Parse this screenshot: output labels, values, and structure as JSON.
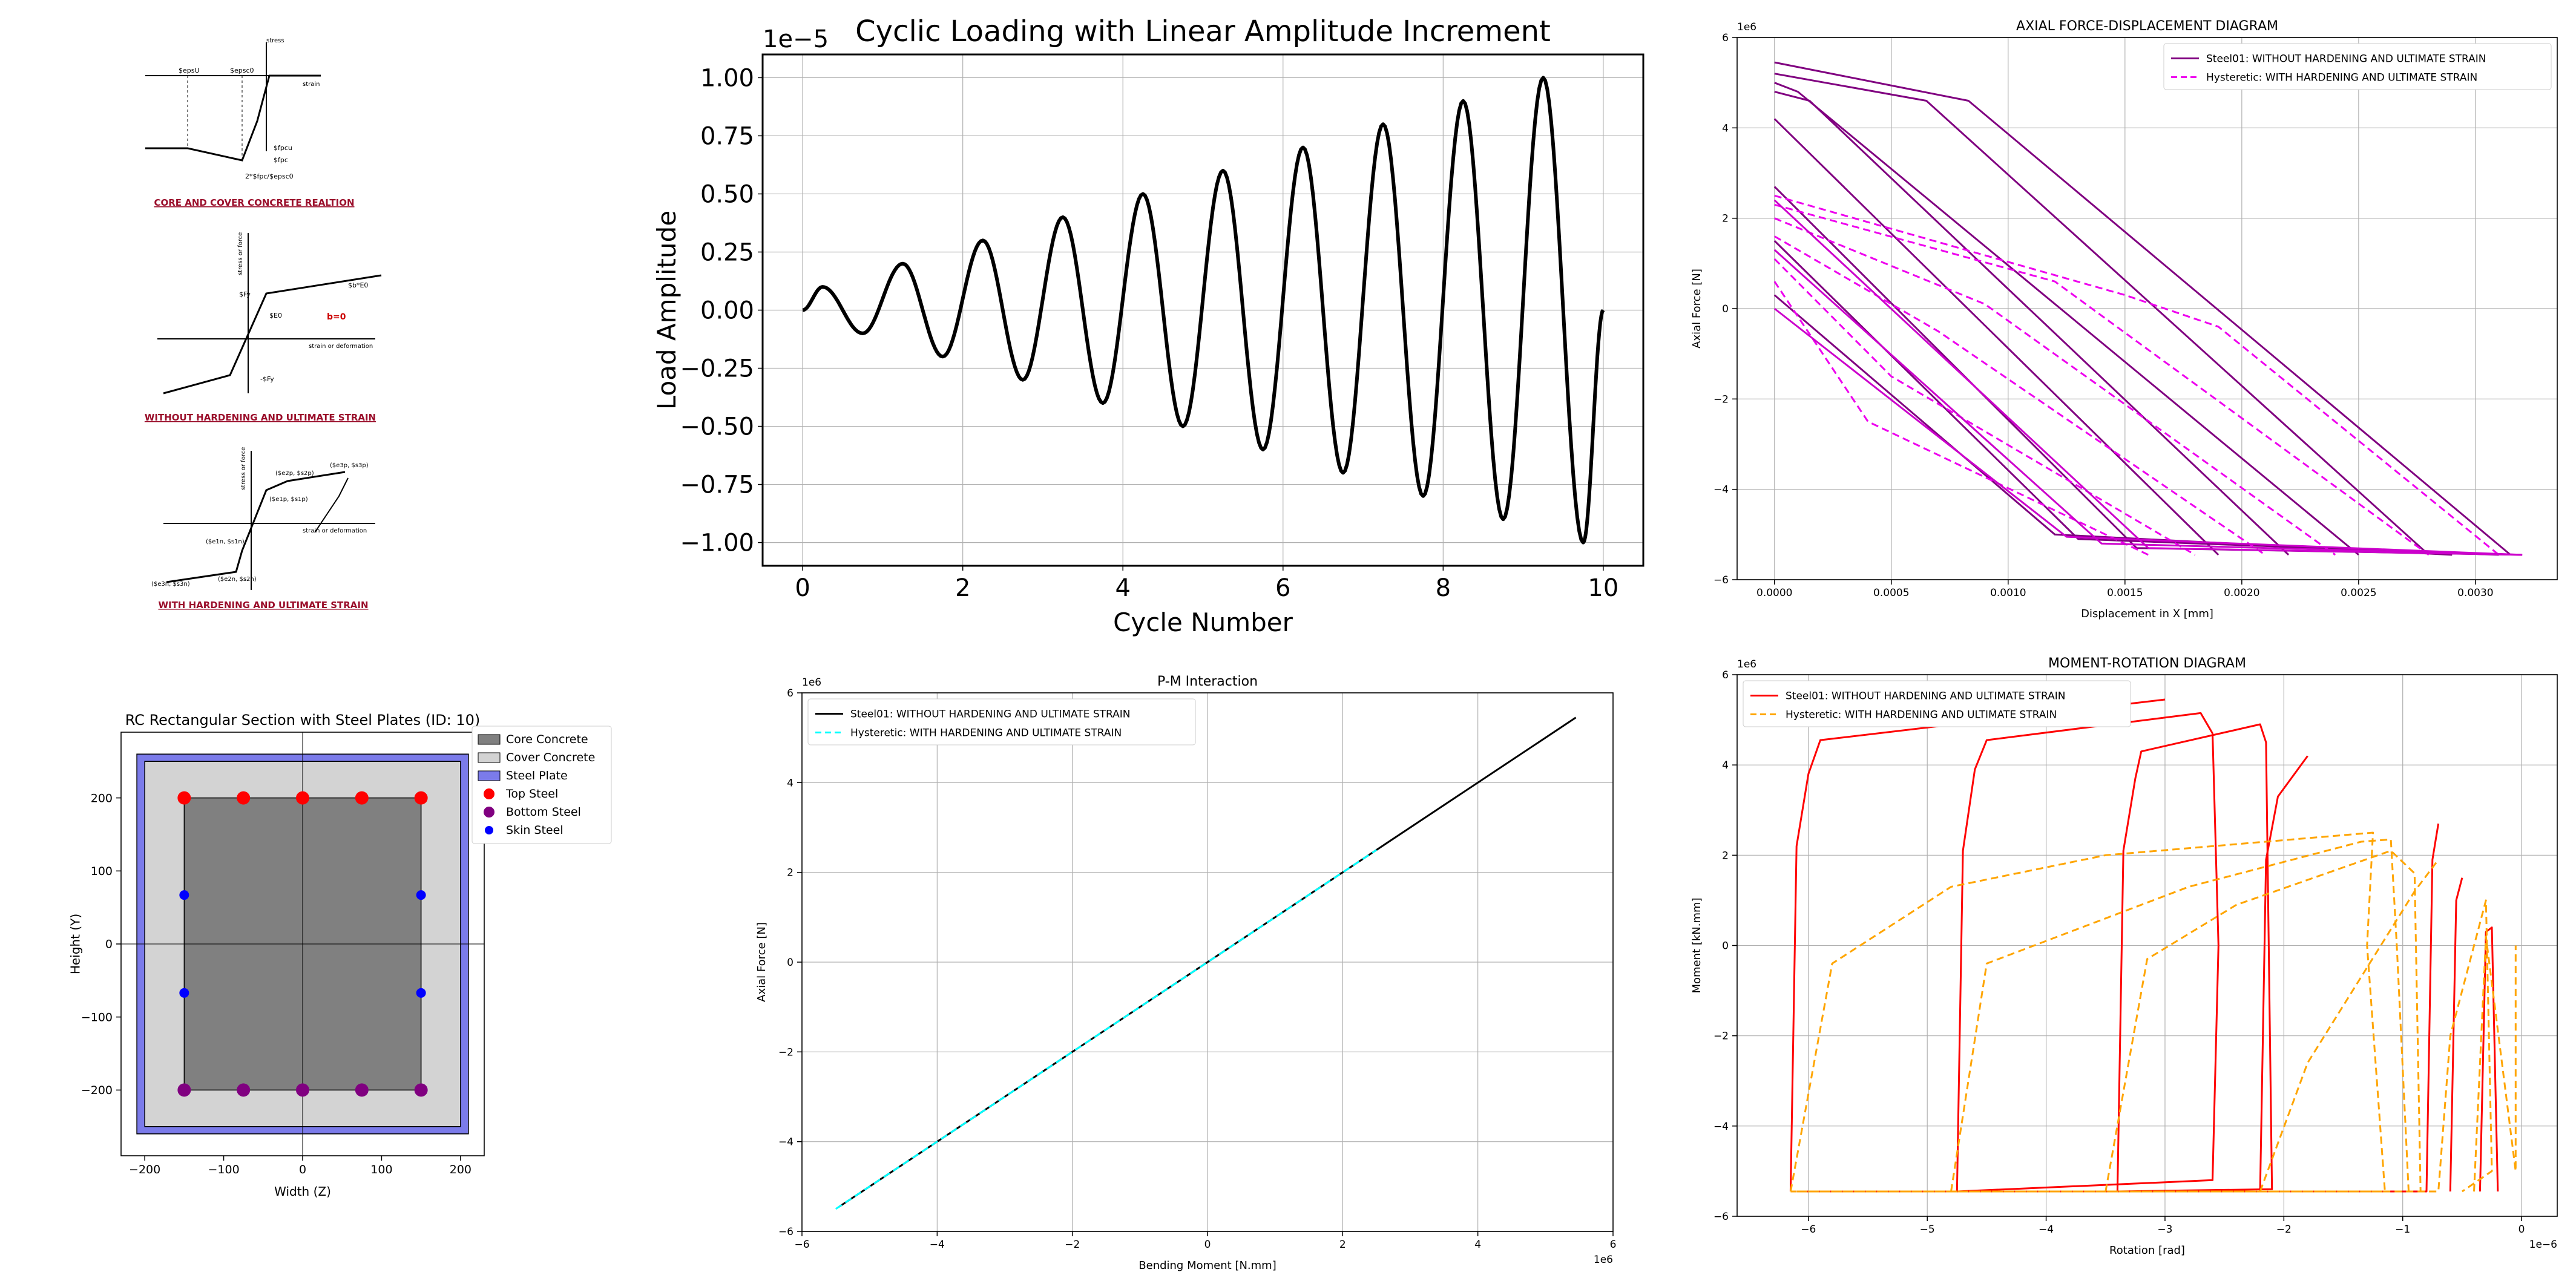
{
  "material_models": {
    "concrete": {
      "caption": "CORE AND COVER CONCRETE REALTION",
      "axis_y": "stress",
      "axis_x": "strain",
      "labels": [
        "$epsU",
        "$epsc0",
        "$fpcu",
        "$fpc",
        "2*$fpc/$epsc0"
      ]
    },
    "steel01": {
      "caption": "WITHOUT HARDENING AND ULTIMATE STRAIN",
      "axis_y": "stress or force",
      "axis_x": "strain or deformation",
      "labels": [
        "$Fy",
        "$b*E0",
        "$E0",
        "-$Fy",
        "b=0"
      ]
    },
    "hysteretic": {
      "caption": "WITH HARDENING AND ULTIMATE STRAIN",
      "axis_y": "stress or force",
      "axis_x": "strain or deformation",
      "labels": [
        "($e1p, $s1p)",
        "($e2p, $s2p)",
        "($e3p, $s3p)",
        "($e1n, $s1n)",
        "($e2n, $s2n)",
        "($e3n, $s3n)"
      ]
    }
  },
  "chart_data": [
    {
      "id": "cyclic",
      "type": "line",
      "title": "Cyclic Loading with Linear Amplitude Increment",
      "xlabel": "Cycle Number",
      "ylabel": "Load Amplitude",
      "y_offset_text": "1e−5",
      "xlim": [
        -0.5,
        10.5
      ],
      "ylim": [
        -1.1,
        1.1
      ],
      "xticks": [
        0,
        2,
        4,
        6,
        8,
        10
      ],
      "xtick_labels": [
        "0",
        "2",
        "4",
        "6",
        "8",
        "10"
      ],
      "yticks": [
        -1.0,
        -0.75,
        -0.5,
        -0.25,
        0.0,
        0.25,
        0.5,
        0.75,
        1.0
      ],
      "ytick_labels": [
        "−1.00",
        "−0.75",
        "−0.50",
        "−0.25",
        "0.00",
        "0.25",
        "0.50",
        "0.75",
        "1.00"
      ],
      "grid": true,
      "series": [
        {
          "color": "#000000",
          "style": "solid",
          "x": [
            0,
            0.25,
            0.75,
            1.25,
            1.75,
            2.25,
            2.75,
            3.25,
            3.75,
            4.25,
            4.75,
            5.25,
            5.75,
            6.25,
            6.75,
            7.25,
            7.75,
            8.25,
            8.75,
            9.25,
            9.75,
            10
          ],
          "y": [
            0,
            0.1,
            -0.1,
            0.2,
            -0.2,
            0.3,
            -0.3,
            0.4,
            -0.4,
            0.5,
            -0.5,
            0.6,
            -0.6,
            0.7,
            -0.7,
            0.8,
            -0.8,
            0.9,
            -0.9,
            1.0,
            -1.0,
            0
          ]
        }
      ]
    },
    {
      "id": "axial",
      "type": "line",
      "title": "AXIAL FORCE-DISPLACEMENT DIAGRAM",
      "xlabel": "Displacement in X [mm]",
      "ylabel": "Axial Force [N]",
      "y_offset_text": "1e6",
      "xlim": [
        -0.00016,
        0.00335
      ],
      "ylim": [
        -6,
        6
      ],
      "xticks": [
        0,
        0.0005,
        0.001,
        0.0015,
        0.002,
        0.0025,
        0.003
      ],
      "xtick_labels": [
        "0.0000",
        "0.0005",
        "0.0010",
        "0.0015",
        "0.0020",
        "0.0025",
        "0.0030"
      ],
      "yticks": [
        -6,
        -4,
        -2,
        0,
        2,
        4,
        6
      ],
      "ytick_labels": [
        "−6",
        "−4",
        "−2",
        "0",
        "2",
        "4",
        "6"
      ],
      "grid": true,
      "legend": "top-right",
      "series": [
        {
          "name": "Steel01: WITHOUT HARDENING AND ULTIMATE STRAIN",
          "color": "#800080",
          "style": "solid",
          "paths": [
            [
              [
                0,
                5.45
              ],
              [
                0.00083,
                4.6
              ],
              [
                0.00315,
                -5.45
              ]
            ],
            [
              [
                0,
                5.2
              ],
              [
                0.00065,
                4.6
              ],
              [
                0.0028,
                -5.45
              ]
            ],
            [
              [
                0,
                5.0
              ],
              [
                0.0001,
                4.8
              ],
              [
                0.0025,
                -5.45
              ]
            ],
            [
              [
                0,
                4.8
              ],
              [
                0.00015,
                4.6
              ],
              [
                0.0022,
                -5.45
              ]
            ],
            [
              [
                0,
                4.2
              ],
              [
                0.0019,
                -5.45
              ]
            ],
            [
              [
                0,
                2.7
              ],
              [
                0.00155,
                -5.3
              ],
              [
                0.0032,
                -5.45
              ]
            ],
            [
              [
                0,
                1.5
              ],
              [
                0.0013,
                -5.1
              ],
              [
                0.0031,
                -5.45
              ]
            ],
            [
              [
                0,
                0.3
              ],
              [
                0.0012,
                -5.0
              ],
              [
                0.0029,
                -5.45
              ]
            ]
          ]
        },
        {
          "name": "Hysteretic: WITH HARDENING AND ULTIMATE STRAIN",
          "color": "#ee00ee",
          "style": "dashed",
          "paths": [
            [
              [
                0,
                2.5
              ],
              [
                0.0015,
                0.3
              ],
              [
                0.0019,
                -0.4
              ],
              [
                0.0031,
                -5.45
              ]
            ],
            [
              [
                0,
                2.3
              ],
              [
                0.0012,
                0.6
              ],
              [
                0.0028,
                -5.45
              ]
            ],
            [
              [
                0,
                2.0
              ],
              [
                0.0009,
                0.1
              ],
              [
                0.0024,
                -5.45
              ]
            ],
            [
              [
                0,
                1.6
              ],
              [
                0.0007,
                -0.5
              ],
              [
                0.0021,
                -5.45
              ]
            ],
            [
              [
                0,
                1.1
              ],
              [
                0.0005,
                -1.5
              ],
              [
                0.0018,
                -5.45
              ]
            ],
            [
              [
                0,
                0.6
              ],
              [
                0.0004,
                -2.5
              ],
              [
                0.0016,
                -5.45
              ]
            ]
          ]
        },
        {
          "color": "#cc00cc",
          "style": "solid",
          "paths": [
            [
              [
                0,
                0.0
              ],
              [
                0.00125,
                -5.05
              ],
              [
                0.0032,
                -5.45
              ]
            ],
            [
              [
                0,
                1.3
              ],
              [
                0.0014,
                -5.2
              ],
              [
                0.0032,
                -5.45
              ]
            ],
            [
              [
                0,
                2.4
              ],
              [
                0.0016,
                -5.3
              ],
              [
                0.0032,
                -5.45
              ]
            ]
          ]
        }
      ]
    },
    {
      "id": "section",
      "type": "scatter",
      "title": "RC Rectangular Section with Steel Plates (ID: 10)",
      "xlabel": "Width (Z)",
      "ylabel": "Height (Y)",
      "xlim": [
        -230,
        230
      ],
      "ylim": [
        -290,
        290
      ],
      "xticks": [
        -200,
        -100,
        0,
        100,
        200
      ],
      "xtick_labels": [
        "−200",
        "−100",
        "0",
        "100",
        "200"
      ],
      "yticks": [
        -200,
        -100,
        0,
        100,
        200
      ],
      "ytick_labels": [
        "−200",
        "−100",
        "0",
        "100",
        "200"
      ],
      "grid": false,
      "legend": "top-right",
      "plate": [
        -210,
        -260,
        210,
        260
      ],
      "cover": [
        -200,
        -250,
        200,
        250
      ],
      "core": [
        -150,
        -200,
        150,
        200
      ],
      "legend_entries": [
        "Core Concrete",
        "Cover Concrete",
        "Steel Plate",
        "Top Steel",
        "Bottom Steel",
        "Skin Steel"
      ],
      "colors": {
        "core": "#808080",
        "cover": "#d3d3d3",
        "plate": "#7b7bea",
        "top": "#ff0000",
        "bottom": "#800080",
        "skin": "#0000ff"
      },
      "top_steel": [
        [
          -150,
          200
        ],
        [
          -75,
          200
        ],
        [
          0,
          200
        ],
        [
          75,
          200
        ],
        [
          150,
          200
        ]
      ],
      "bottom_steel": [
        [
          -150,
          -200
        ],
        [
          -75,
          -200
        ],
        [
          0,
          -200
        ],
        [
          75,
          -200
        ],
        [
          150,
          -200
        ]
      ],
      "skin_steel": [
        [
          -150,
          67
        ],
        [
          -150,
          -67
        ],
        [
          150,
          67
        ],
        [
          150,
          -67
        ]
      ]
    },
    {
      "id": "pm",
      "type": "line",
      "title": "P-M Interaction",
      "xlabel": "Bending Moment [N.mm]",
      "ylabel": "Axial Force [N]",
      "x_offset_text": "1e6",
      "y_offset_text": "1e6",
      "xlim": [
        -6,
        6
      ],
      "ylim": [
        -6,
        6
      ],
      "xticks": [
        -6,
        -4,
        -2,
        0,
        2,
        4,
        6
      ],
      "xtick_labels": [
        "−6",
        "−4",
        "−2",
        "0",
        "2",
        "4",
        "6"
      ],
      "yticks": [
        -6,
        -4,
        -2,
        0,
        2,
        4,
        6
      ],
      "ytick_labels": [
        "−6",
        "−4",
        "−2",
        "0",
        "2",
        "4",
        "6"
      ],
      "grid": true,
      "legend": "top-left",
      "series": [
        {
          "name": "Steel01: WITHOUT HARDENING AND ULTIMATE STRAIN",
          "color": "#000000",
          "style": "solid",
          "paths": [
            [
              [
                -5.45,
                -5.45
              ],
              [
                5.45,
                5.45
              ]
            ]
          ]
        },
        {
          "name": "Hysteretic: WITH HARDENING AND ULTIMATE STRAIN",
          "color": "#00ffff",
          "style": "dashed",
          "paths": [
            [
              [
                -5.5,
                -5.5
              ],
              [
                2.5,
                2.5
              ]
            ]
          ]
        }
      ]
    },
    {
      "id": "moment",
      "type": "line",
      "title": "MOMENT-ROTATION DIAGRAM",
      "xlabel": "Rotation [rad]",
      "ylabel": "Moment [kN.mm]",
      "x_offset_text": "1e−6",
      "y_offset_text": "1e6",
      "xlim": [
        -6.6,
        0.3
      ],
      "ylim": [
        -6,
        6
      ],
      "xticks": [
        -6,
        -5,
        -4,
        -3,
        -2,
        -1,
        0
      ],
      "xtick_labels": [
        "−6",
        "−5",
        "−4",
        "−3",
        "−2",
        "−1",
        "0"
      ],
      "yticks": [
        -6,
        -4,
        -2,
        0,
        2,
        4,
        6
      ],
      "ytick_labels": [
        "−6",
        "−4",
        "−2",
        "0",
        "2",
        "4",
        "6"
      ],
      "grid": true,
      "legend": "top-left",
      "series": [
        {
          "name": "Steel01: WITHOUT HARDENING AND ULTIMATE STRAIN",
          "color": "#ff0000",
          "style": "solid",
          "paths": [
            [
              [
                -6.15,
                -5.45
              ],
              [
                -6.1,
                2.2
              ],
              [
                -6.0,
                3.8
              ],
              [
                -5.9,
                4.55
              ],
              [
                -3.0,
                5.45
              ]
            ],
            [
              [
                -4.75,
                -5.45
              ],
              [
                -4.7,
                2.1
              ],
              [
                -4.6,
                3.9
              ],
              [
                -4.5,
                4.55
              ],
              [
                -2.7,
                5.15
              ],
              [
                -2.6,
                4.7
              ],
              [
                -2.55,
                0
              ],
              [
                -2.6,
                -5.2
              ],
              [
                -4.75,
                -5.45
              ]
            ],
            [
              [
                -3.4,
                -5.45
              ],
              [
                -3.35,
                2.1
              ],
              [
                -3.25,
                3.7
              ],
              [
                -3.2,
                4.3
              ],
              [
                -2.2,
                4.9
              ],
              [
                -2.15,
                4.5
              ],
              [
                -2.1,
                -5.4
              ],
              [
                -3.4,
                -5.45
              ]
            ],
            [
              [
                -2.2,
                -5.45
              ],
              [
                -2.15,
                1.9
              ],
              [
                -2.05,
                3.3
              ],
              [
                -1.8,
                4.2
              ]
            ],
            [
              [
                -6.1,
                -5.45
              ],
              [
                -0.8,
                -5.45
              ],
              [
                -0.75,
                1.9
              ],
              [
                -0.7,
                2.7
              ]
            ],
            [
              [
                -0.6,
                -5.45
              ],
              [
                -0.55,
                1.0
              ],
              [
                -0.5,
                1.5
              ]
            ],
            [
              [
                -0.35,
                -5.45
              ],
              [
                -0.3,
                0.3
              ],
              [
                -0.25,
                0.4
              ],
              [
                -0.2,
                -5.45
              ]
            ]
          ]
        },
        {
          "name": "Hysteretic: WITH HARDENING AND ULTIMATE STRAIN",
          "color": "#ffa500",
          "style": "dashed",
          "paths": [
            [
              [
                -6.15,
                -5.45
              ],
              [
                -5.8,
                -0.4
              ],
              [
                -4.8,
                1.3
              ],
              [
                -3.5,
                2.0
              ],
              [
                -1.25,
                2.5
              ],
              [
                -1.3,
                0.0
              ],
              [
                -1.15,
                -5.45
              ],
              [
                -6.15,
                -5.45
              ]
            ],
            [
              [
                -4.8,
                -5.45
              ],
              [
                -4.5,
                -0.4
              ],
              [
                -2.8,
                1.3
              ],
              [
                -1.35,
                2.3
              ],
              [
                -1.1,
                2.35
              ],
              [
                -1.05,
                0.0
              ],
              [
                -0.95,
                -5.45
              ]
            ],
            [
              [
                -3.5,
                -5.45
              ],
              [
                -3.15,
                -0.3
              ],
              [
                -2.4,
                0.9
              ],
              [
                -1.1,
                2.1
              ],
              [
                -0.9,
                1.6
              ],
              [
                -0.85,
                -5.45
              ]
            ],
            [
              [
                -2.2,
                -5.45
              ],
              [
                -1.8,
                -2.6
              ],
              [
                -0.9,
                1.2
              ],
              [
                -0.7,
                1.9
              ]
            ],
            [
              [
                -6.1,
                -5.45
              ],
              [
                -0.7,
                -5.45
              ],
              [
                -0.6,
                -2.0
              ],
              [
                -0.3,
                1.0
              ],
              [
                -0.25,
                -5.0
              ],
              [
                -0.5,
                -5.45
              ]
            ],
            [
              [
                -0.4,
                -5.45
              ],
              [
                -0.3,
                0.2
              ],
              [
                -0.05,
                -5.0
              ],
              [
                -0.05,
                0
              ]
            ]
          ]
        }
      ]
    }
  ]
}
